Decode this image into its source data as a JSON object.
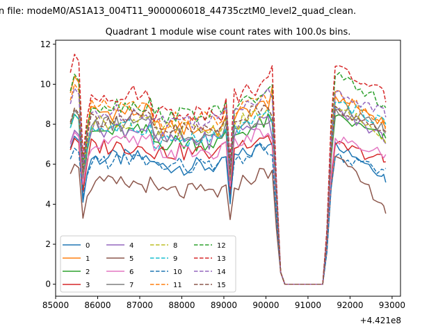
{
  "header_text": "n file: modeM0/AS1A13_004T11_9000006018_44735cztM0_level2_quad_clean.",
  "chart_data": {
    "type": "line",
    "title": "Quadrant 1 module wise count rates with 100.0s bins.",
    "xlabel": "",
    "ylabel": "",
    "x_offset_label": "+4.421e8",
    "xlim": [
      85000,
      93200
    ],
    "ylim": [
      -0.6,
      12.2
    ],
    "x_ticks": [
      85000,
      86000,
      87000,
      88000,
      89000,
      90000,
      91000,
      92000,
      93000
    ],
    "y_ticks": [
      0,
      2,
      4,
      6,
      8,
      10,
      12
    ],
    "grid": false,
    "legend": {
      "placement": "lower-left",
      "columns": 4
    },
    "x": [
      85350,
      85450,
      85550,
      85650,
      85750,
      85850,
      85950,
      86050,
      86150,
      86250,
      86350,
      86450,
      86550,
      86650,
      86750,
      86850,
      86950,
      87050,
      87150,
      87250,
      87350,
      87450,
      87550,
      87650,
      87750,
      87850,
      87950,
      88050,
      88150,
      88250,
      88350,
      88450,
      88550,
      88650,
      88750,
      88850,
      88950,
      89050,
      89150,
      89250,
      89350,
      89450,
      89550,
      89650,
      89750,
      89850,
      89950,
      90050,
      90150,
      90250,
      90350,
      90450,
      90550,
      90650,
      90750,
      90850,
      90950,
      91050,
      91150,
      91250,
      91350,
      91450,
      91550,
      91650,
      91750,
      91850,
      91950,
      92050,
      92150,
      92250,
      92350,
      92450,
      92550,
      92650,
      92750,
      92800,
      92850
    ],
    "spikes": {
      "dip_indices": [
        3,
        38
      ],
      "high_indices": [
        1,
        48,
        63
      ],
      "gap_indices": [
        51,
        52,
        53,
        54,
        55,
        56,
        57,
        58,
        59,
        60
      ],
      "ramp_indices": [
        50,
        61
      ]
    },
    "series": [
      {
        "name": "0",
        "color": "#1f77b4",
        "dash": "solid",
        "base_a": 6.3,
        "base_b": 5.9,
        "base_c": 6.3,
        "high": 7.4,
        "dip": 4.1,
        "post": 7.1,
        "post_end": 5.3
      },
      {
        "name": "1",
        "color": "#ff7f0e",
        "dash": "solid",
        "base_a": 8.6,
        "base_b": 7.8,
        "base_c": 8.4,
        "high": 10.4,
        "dip": 5.2,
        "post": 9.4,
        "post_end": 8.0
      },
      {
        "name": "2",
        "color": "#2ca02c",
        "dash": "solid",
        "base_a": 7.6,
        "base_b": 7.1,
        "base_c": 7.5,
        "high": 8.5,
        "dip": 4.6,
        "post": 8.4,
        "post_end": 7.2
      },
      {
        "name": "3",
        "color": "#d62728",
        "dash": "solid",
        "base_a": 6.9,
        "base_b": 6.6,
        "base_c": 6.9,
        "high": 7.3,
        "dip": 4.6,
        "post": 7.0,
        "post_end": 6.1
      },
      {
        "name": "4",
        "color": "#9467bd",
        "dash": "solid",
        "base_a": 7.8,
        "base_b": 7.2,
        "base_c": 7.6,
        "high": 7.7,
        "dip": 5.3,
        "post": 8.7,
        "post_end": 7.2
      },
      {
        "name": "5",
        "color": "#8c564b",
        "dash": "solid",
        "base_a": 5.0,
        "base_b": 4.6,
        "base_c": 5.0,
        "high": 6.0,
        "dip": 3.3,
        "post": 6.4,
        "post_end": 3.7
      },
      {
        "name": "6",
        "color": "#e377c2",
        "dash": "solid",
        "base_a": 7.1,
        "base_b": 6.6,
        "base_c": 7.0,
        "high": 7.6,
        "dip": 5.0,
        "post": 7.3,
        "post_end": 6.4
      },
      {
        "name": "7",
        "color": "#7f7f7f",
        "dash": "solid",
        "base_a": 8.0,
        "base_b": 7.5,
        "base_c": 7.8,
        "high": 8.7,
        "dip": 5.3,
        "post": 8.8,
        "post_end": 7.7
      },
      {
        "name": "8",
        "color": "#bcbd22",
        "dash": "dashed",
        "base_a": 8.1,
        "base_b": 7.7,
        "base_c": 8.0,
        "high": 8.8,
        "dip": 5.5,
        "post": 8.9,
        "post_end": 7.3
      },
      {
        "name": "9",
        "color": "#17becf",
        "dash": "dashed",
        "base_a": 7.8,
        "base_b": 7.2,
        "base_c": 7.7,
        "high": 8.5,
        "dip": 5.6,
        "post": 9.1,
        "post_end": 8.0
      },
      {
        "name": "10",
        "color": "#1f77b4",
        "dash": "dashed",
        "base_a": 6.2,
        "base_b": 5.9,
        "base_c": 6.2,
        "high": 6.8,
        "dip": 4.4,
        "post": 6.4,
        "post_end": 5.5
      },
      {
        "name": "11",
        "color": "#ff7f0e",
        "dash": "dashed",
        "base_a": 8.8,
        "base_b": 8.2,
        "base_c": 8.6,
        "high": 10.0,
        "dip": 5.8,
        "post": 9.7,
        "post_end": 7.8
      },
      {
        "name": "12",
        "color": "#2ca02c",
        "dash": "dashed",
        "base_a": 9.0,
        "base_b": 8.5,
        "base_c": 8.9,
        "high": 10.5,
        "dip": 6.0,
        "post": 10.4,
        "post_end": 8.9
      },
      {
        "name": "13",
        "color": "#d62728",
        "dash": "dashed",
        "base_a": 9.5,
        "base_b": 8.6,
        "base_c": 9.4,
        "high": 11.5,
        "dip": 6.4,
        "post": 10.9,
        "post_end": 9.3
      },
      {
        "name": "14",
        "color": "#9467bd",
        "dash": "dashed",
        "base_a": 8.6,
        "base_b": 8.2,
        "base_c": 8.9,
        "high": 9.8,
        "dip": 6.0,
        "post": 9.6,
        "post_end": 8.5
      },
      {
        "name": "15",
        "color": "#8c564b",
        "dash": "dashed",
        "base_a": 8.3,
        "base_b": 7.7,
        "base_c": 8.2,
        "high": 8.8,
        "dip": 5.6,
        "post": 8.9,
        "post_end": 7.4
      }
    ]
  }
}
